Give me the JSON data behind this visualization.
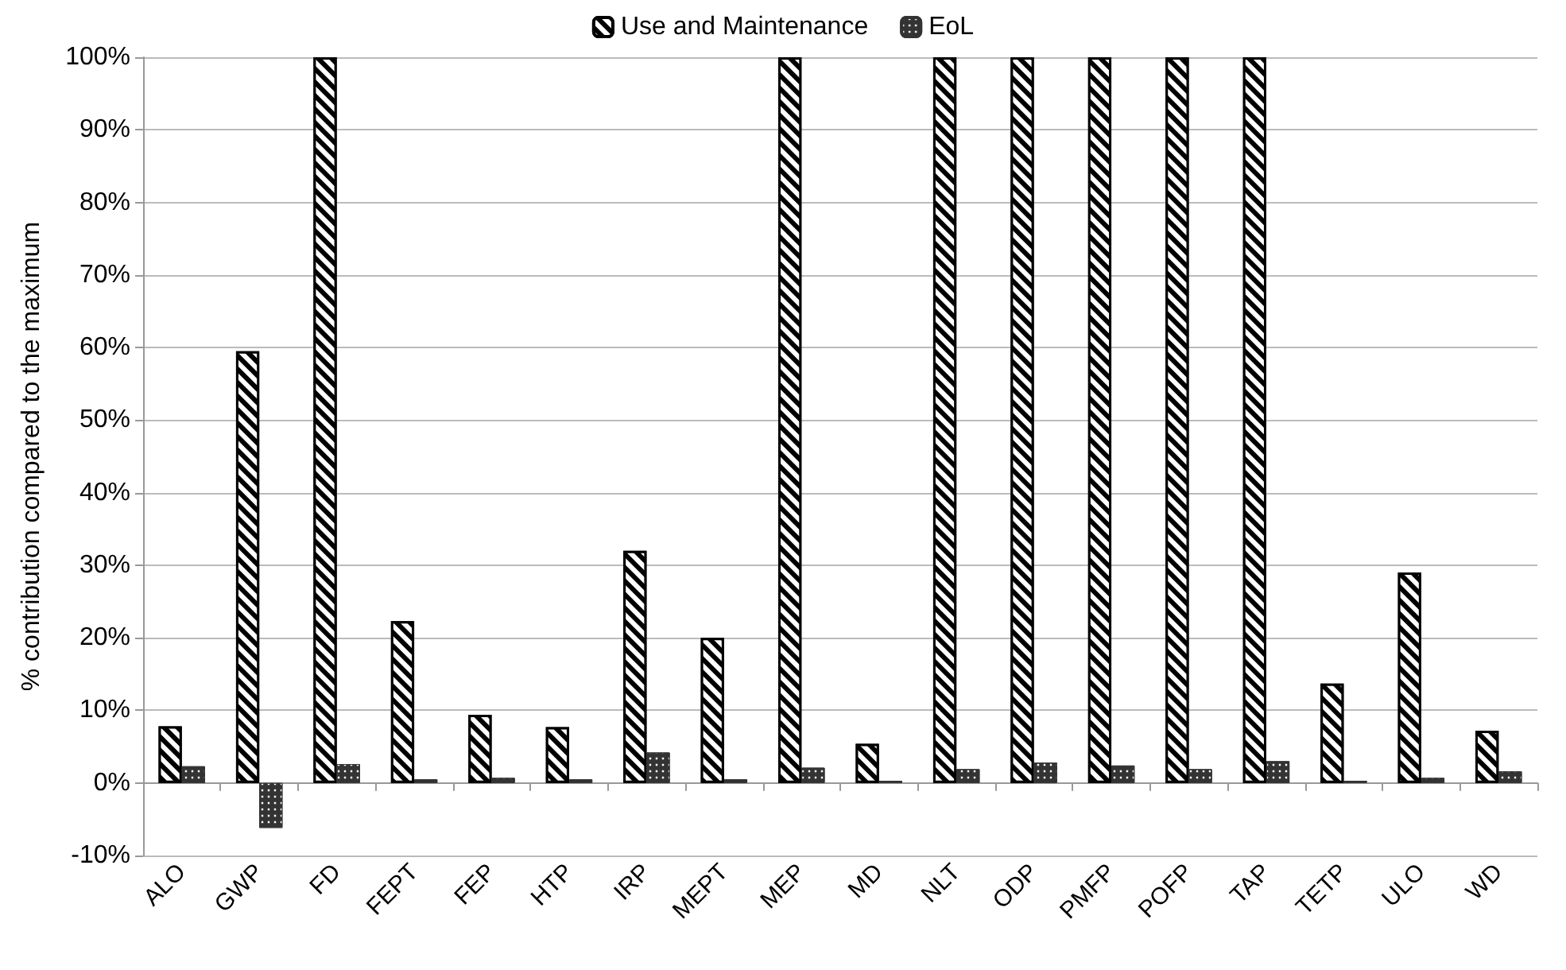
{
  "chart_data": {
    "type": "bar",
    "ylabel": "% contribution compared to the maximum",
    "categories": [
      "ALO",
      "GWP",
      "FD",
      "FEPT",
      "FEP",
      "HTP",
      "IRP",
      "MEPT",
      "MEP",
      "MD",
      "NLT",
      "ODP",
      "PMFP",
      "POFP",
      "TAP",
      "TETP",
      "ULO",
      "WD"
    ],
    "series": [
      {
        "name": "Use and Maintenance",
        "color": "#000000",
        "values": [
          7.8,
          59.5,
          100,
          22.3,
          9.4,
          7.7,
          32,
          20,
          100,
          5.4,
          100,
          100,
          100,
          100,
          100,
          13.7,
          29,
          7.2
        ]
      },
      {
        "name": "EoL",
        "color": "#333333",
        "values": [
          2.3,
          -6.2,
          2.6,
          0.5,
          0.7,
          0.5,
          4.2,
          0.5,
          2.1,
          0.3,
          1.9,
          2.8,
          2.4,
          1.9,
          3.0,
          0.3,
          0.7,
          1.6
        ]
      }
    ],
    "ylim": [
      -10,
      100
    ],
    "yticks": [
      {
        "value": -10,
        "label": "-10%"
      },
      {
        "value": 0,
        "label": "0%"
      },
      {
        "value": 10,
        "label": "10%"
      },
      {
        "value": 20,
        "label": "20%"
      },
      {
        "value": 30,
        "label": "30%"
      },
      {
        "value": 40,
        "label": "40%"
      },
      {
        "value": 50,
        "label": "50%"
      },
      {
        "value": 60,
        "label": "60%"
      },
      {
        "value": 70,
        "label": "70%"
      },
      {
        "value": 80,
        "label": "80%"
      },
      {
        "value": 90,
        "label": "90%"
      },
      {
        "value": 100,
        "label": "100%"
      }
    ],
    "grid": "y",
    "legend": "top"
  }
}
